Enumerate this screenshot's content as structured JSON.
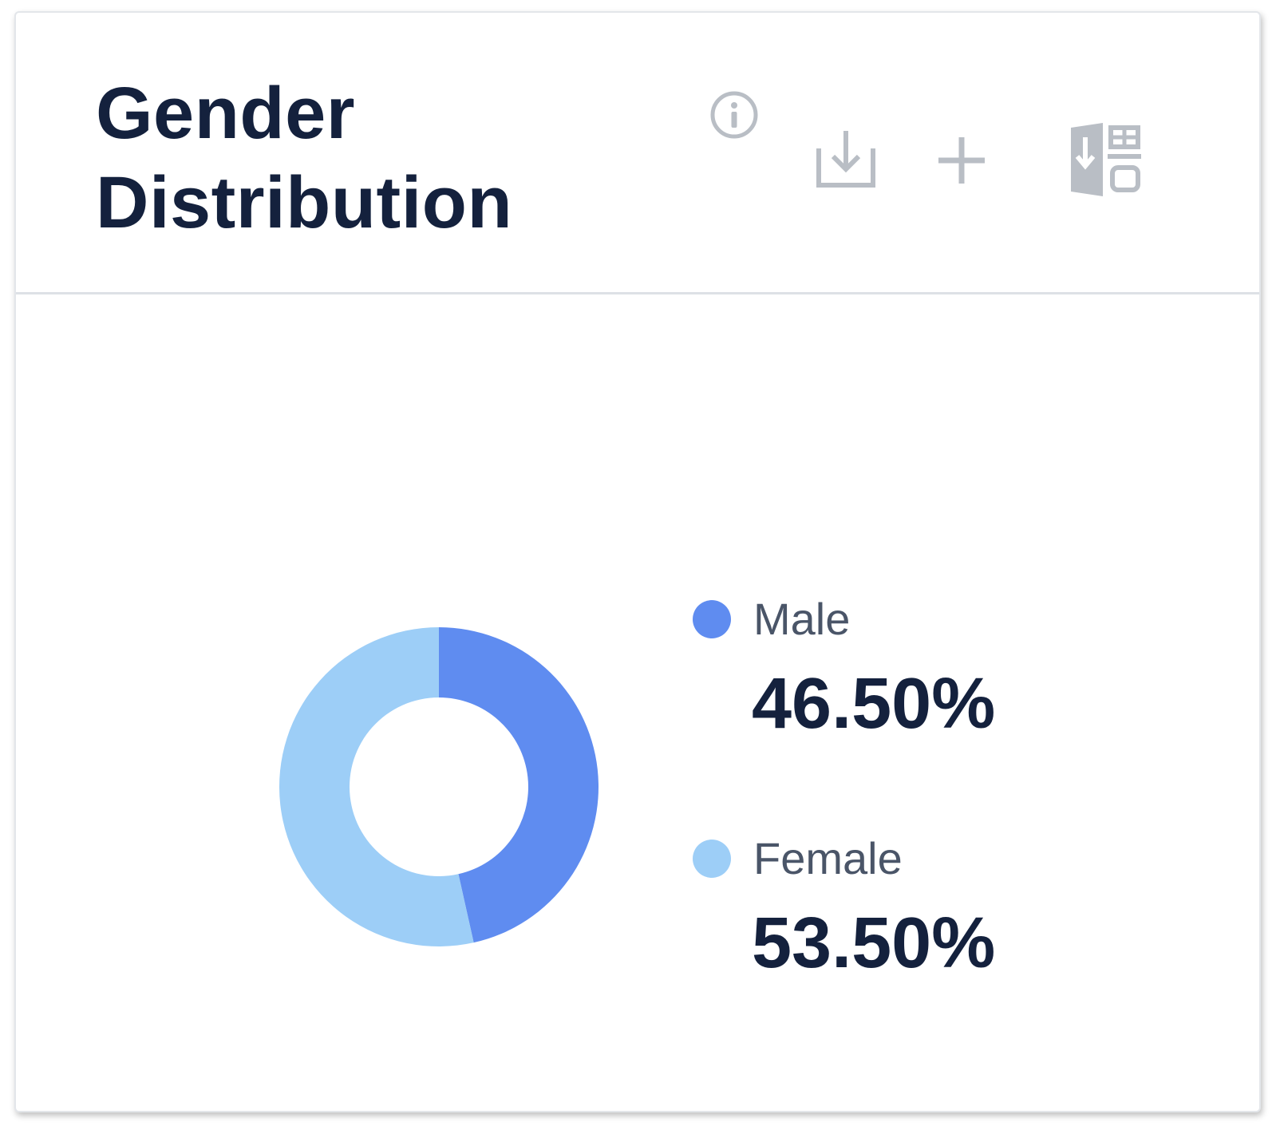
{
  "header": {
    "title_line1": "Gender",
    "title_line2": "Distribution",
    "icons": [
      "info-icon",
      "download-icon",
      "plus-icon",
      "export-icon"
    ]
  },
  "colors": {
    "male": "#5f8cf0",
    "female": "#9dcef7",
    "title": "#14213d",
    "icon": "#b9bec5"
  },
  "chart_data": {
    "type": "pie",
    "donut": true,
    "categories": [
      "Male",
      "Female"
    ],
    "values": [
      46.5,
      53.5
    ],
    "value_labels": [
      "46.50%",
      "53.50%"
    ],
    "title": "Gender Distribution",
    "legend_position": "right"
  }
}
